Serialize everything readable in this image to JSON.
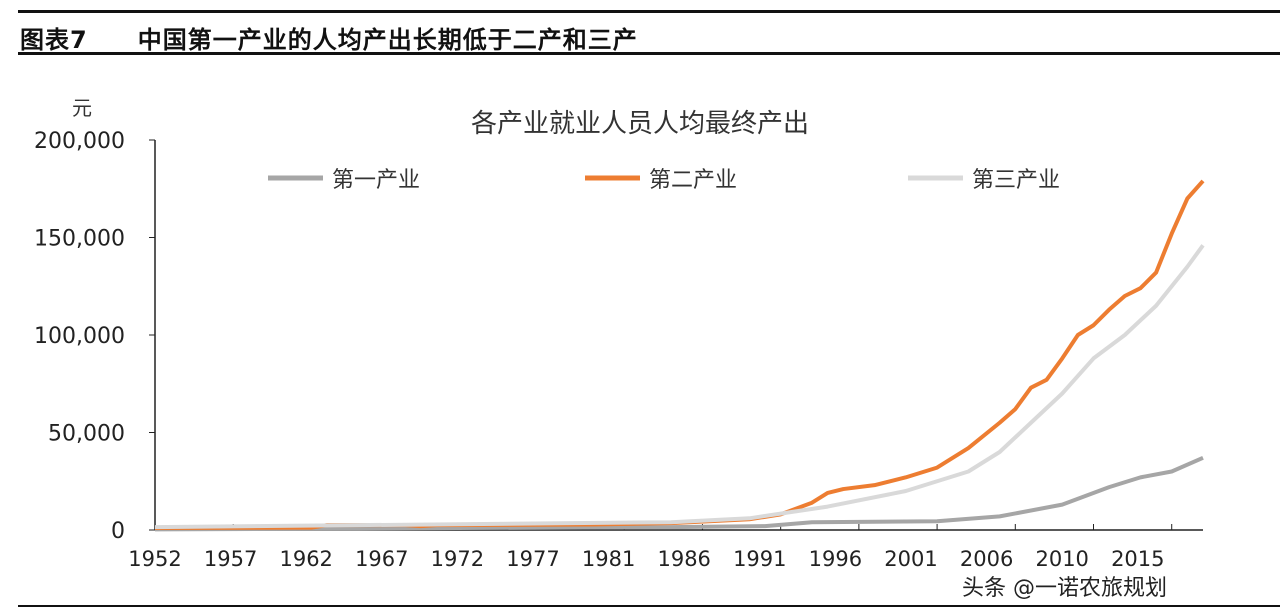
{
  "figure": {
    "label": "图表7",
    "title": "中国第一产业的人均产出长期低于二产和三产"
  },
  "watermark": "头条 @一诺农旅规划",
  "chart_data": {
    "type": "line",
    "title": "各产业就业人员人均最终产出",
    "ylabel": "元",
    "ylim": [
      0,
      200000
    ],
    "xlim": [
      1952,
      2019
    ],
    "yticks": [
      "0",
      "50,000",
      "100,000",
      "150,000",
      "200,000"
    ],
    "ytick_values": [
      0,
      50000,
      100000,
      150000,
      200000
    ],
    "xtick_labels": [
      "1952",
      "1957",
      "1962",
      "1967",
      "1972",
      "1977",
      "1981",
      "1986",
      "1991",
      "1996",
      "2001",
      "2006",
      "2010",
      "2015"
    ],
    "xtick_years": [
      1952,
      1957,
      1962,
      1967,
      1972,
      1977,
      1982,
      1987,
      1992,
      1997,
      2002,
      2007,
      2012,
      2017
    ],
    "grid": false,
    "legend_placement": "top",
    "series": [
      {
        "name": "第一产业",
        "color": "#a6a6a6",
        "points": [
          [
            1952,
            300
          ],
          [
            1985,
            1500
          ],
          [
            1991,
            2000
          ],
          [
            1994,
            4000
          ],
          [
            2002,
            4500
          ],
          [
            2006,
            7000
          ],
          [
            2010,
            13000
          ],
          [
            2013,
            22000
          ],
          [
            2015,
            27000
          ],
          [
            2017,
            30000
          ],
          [
            2019,
            37000
          ]
        ]
      },
      {
        "name": "第二产业",
        "color": "#ed7d31",
        "points": [
          [
            1952,
            1000
          ],
          [
            1962,
            1200
          ],
          [
            1963,
            2500
          ],
          [
            1968,
            2500
          ],
          [
            1969,
            2000
          ],
          [
            1970,
            2500
          ],
          [
            1980,
            2800
          ],
          [
            1985,
            3500
          ],
          [
            1990,
            5500
          ],
          [
            1992,
            8000
          ],
          [
            1994,
            14000
          ],
          [
            1995,
            19000
          ],
          [
            1996,
            21000
          ],
          [
            1998,
            23000
          ],
          [
            2000,
            27000
          ],
          [
            2002,
            32000
          ],
          [
            2004,
            42000
          ],
          [
            2006,
            55000
          ],
          [
            2007,
            62000
          ],
          [
            2008,
            73000
          ],
          [
            2009,
            77000
          ],
          [
            2010,
            88000
          ],
          [
            2011,
            100000
          ],
          [
            2012,
            105000
          ],
          [
            2013,
            113000
          ],
          [
            2014,
            120000
          ],
          [
            2015,
            124000
          ],
          [
            2016,
            132000
          ],
          [
            2017,
            152000
          ],
          [
            2018,
            170000
          ],
          [
            2019,
            179000
          ]
        ]
      },
      {
        "name": "第三产业",
        "color": "#d9d9d9",
        "points": [
          [
            1952,
            1500
          ],
          [
            1985,
            4000
          ],
          [
            1990,
            6000
          ],
          [
            1995,
            12000
          ],
          [
            2000,
            20000
          ],
          [
            2004,
            30000
          ],
          [
            2006,
            40000
          ],
          [
            2008,
            55000
          ],
          [
            2010,
            70000
          ],
          [
            2012,
            88000
          ],
          [
            2014,
            100000
          ],
          [
            2016,
            115000
          ],
          [
            2018,
            135000
          ],
          [
            2019,
            146000
          ]
        ]
      }
    ]
  }
}
